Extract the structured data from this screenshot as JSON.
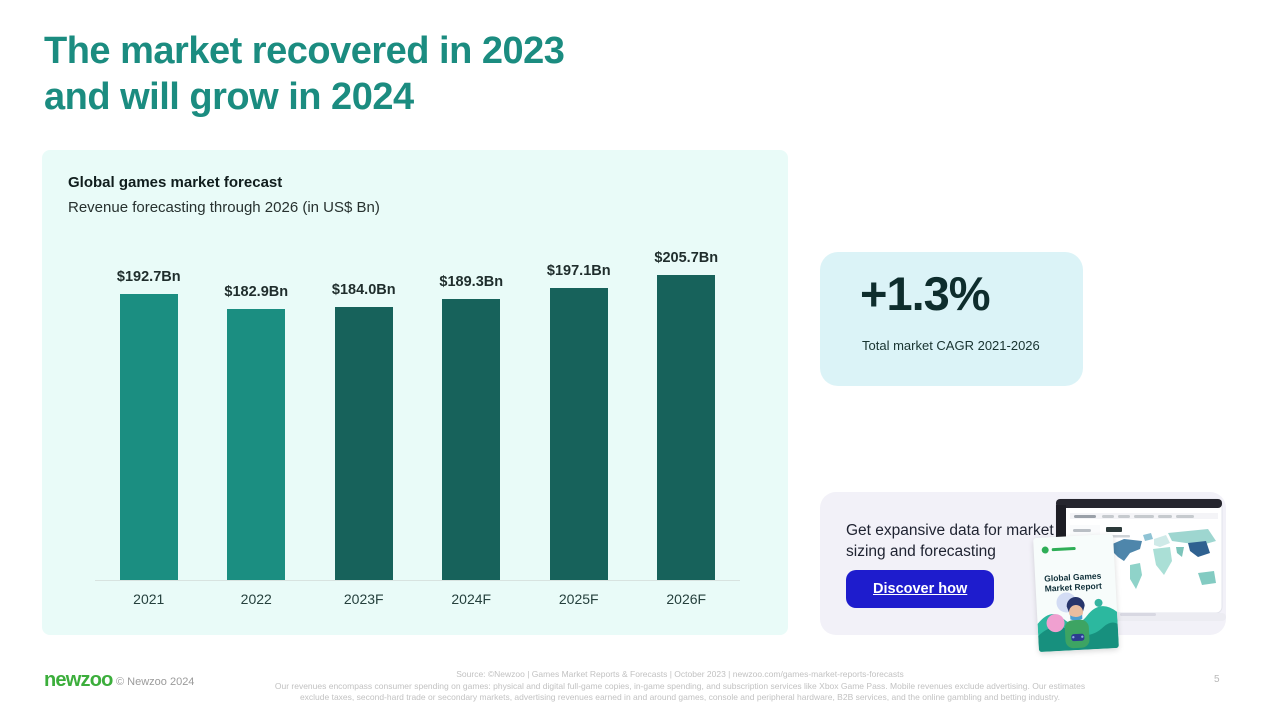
{
  "slide": {
    "title_line1": "The market recovered in 2023",
    "title_line2": "and will grow in 2024"
  },
  "chart_data": {
    "type": "bar",
    "title": "Global games market forecast",
    "subtitle": "Revenue forecasting through 2026 (in US$ Bn)",
    "categories": [
      "2021",
      "2022",
      "2023F",
      "2024F",
      "2025F",
      "2026F"
    ],
    "values": [
      192.7,
      182.9,
      184.0,
      189.3,
      197.1,
      205.7
    ],
    "value_labels": [
      "$192.7Bn",
      "$182.9Bn",
      "$184.0Bn",
      "$189.3Bn",
      "$197.1Bn",
      "$205.7Bn"
    ],
    "bar_colors": [
      "#1b8e81",
      "#1b8e81",
      "#17625b",
      "#17625b",
      "#17625b",
      "#17625b"
    ],
    "actual_color": "#1b8e81",
    "forecast_color": "#17625b",
    "ylim": [
      0,
      220
    ],
    "grid": false,
    "legend_position": "none",
    "xlabel": "",
    "ylabel": ""
  },
  "cagr_panel": {
    "value": "+1.3%",
    "caption": "Total market CAGR 2021-2026"
  },
  "cta_card": {
    "text": "Get expansive data for market sizing and forecasting",
    "button_label": "Discover how",
    "button_color": "#1e1ccd",
    "report_title": "Global Games Market Report"
  },
  "footer": {
    "logo_text": "newzoo",
    "copyright": "© Newzoo 2024",
    "source_line": "Source: ©Newzoo | Games Market Reports & Forecasts | October 2023 | newzoo.com/games-market-reports-forecasts",
    "disclaimer_line1": "Our revenues encompass consumer spending on games: physical and digital full-game copies, in-game spending, and subscription services like Xbox Game Pass. Mobile revenues exclude advertising. Our estimates",
    "disclaimer_line2": "exclude taxes, second-hard trade or secondary markets, advertising revenues earned in and around games, console and peripheral hardware, B2B services, and the online gambling and betting industry.",
    "page_number": "5"
  },
  "colors": {
    "title_teal": "#1b8c80",
    "chart_panel_bg": "#e9fbf8",
    "cagr_panel_bg": "#dbf3f7",
    "cta_card_bg": "#f2f1f8",
    "logo_green": "#3cae3c"
  }
}
